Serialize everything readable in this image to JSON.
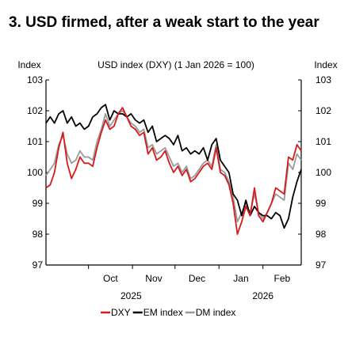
{
  "chart_data": {
    "type": "line",
    "title": "3. USD firmed, after a weak start to the year",
    "subtitle": "USD index (DXY) (1 Jan 2026 = 100)",
    "ylabel_left": "Index",
    "ylabel_right": "Index",
    "ylim": [
      97,
      103
    ],
    "yticks": [
      "103",
      "102",
      "101",
      "100",
      "99",
      "98",
      "97"
    ],
    "x_range": [
      "2025-09-01",
      "2026-02-28"
    ],
    "month_ticks": [
      {
        "label": "Oct",
        "date": "2025-10-01"
      },
      {
        "label": "Nov",
        "date": "2025-11-01"
      },
      {
        "label": "Dec",
        "date": "2025-12-01"
      },
      {
        "label": "Jan",
        "date": "2026-01-01"
      },
      {
        "label": "Feb",
        "date": "2026-02-01"
      }
    ],
    "year_labels": [
      {
        "label": "2025",
        "date": "2025-10-31"
      },
      {
        "label": "2026",
        "date": "2026-02-01"
      }
    ],
    "grid": false,
    "legend_position": "bottom",
    "series": [
      {
        "name": "DXY",
        "color": "#d7191c",
        "points": [
          [
            "2025-09-01",
            99.5
          ],
          [
            "2025-09-04",
            99.6
          ],
          [
            "2025-09-07",
            100.0
          ],
          [
            "2025-09-10",
            100.8
          ],
          [
            "2025-09-13",
            101.3
          ],
          [
            "2025-09-16",
            100.3
          ],
          [
            "2025-09-19",
            99.8
          ],
          [
            "2025-09-22",
            100.1
          ],
          [
            "2025-09-25",
            100.5
          ],
          [
            "2025-09-28",
            100.3
          ],
          [
            "2025-10-01",
            100.3
          ],
          [
            "2025-10-04",
            100.2
          ],
          [
            "2025-10-07",
            100.8
          ],
          [
            "2025-10-10",
            101.3
          ],
          [
            "2025-10-13",
            101.7
          ],
          [
            "2025-10-16",
            101.4
          ],
          [
            "2025-10-19",
            101.5
          ],
          [
            "2025-10-22",
            101.9
          ],
          [
            "2025-10-25",
            102.1
          ],
          [
            "2025-10-28",
            101.8
          ],
          [
            "2025-10-31",
            101.5
          ],
          [
            "2025-11-03",
            101.4
          ],
          [
            "2025-11-06",
            101.2
          ],
          [
            "2025-11-09",
            101.3
          ],
          [
            "2025-11-12",
            100.6
          ],
          [
            "2025-11-15",
            100.8
          ],
          [
            "2025-11-18",
            100.4
          ],
          [
            "2025-11-21",
            100.5
          ],
          [
            "2025-11-24",
            100.7
          ],
          [
            "2025-11-27",
            100.3
          ],
          [
            "2025-11-30",
            100.0
          ],
          [
            "2025-12-03",
            100.2
          ],
          [
            "2025-12-06",
            99.9
          ],
          [
            "2025-12-09",
            100.1
          ],
          [
            "2025-12-12",
            99.7
          ],
          [
            "2025-12-15",
            99.8
          ],
          [
            "2025-12-18",
            100.0
          ],
          [
            "2025-12-21",
            100.2
          ],
          [
            "2025-12-24",
            100.3
          ],
          [
            "2025-12-27",
            100.1
          ],
          [
            "2025-12-30",
            100.8
          ],
          [
            "2026-01-02",
            100.0
          ],
          [
            "2026-01-05",
            99.9
          ],
          [
            "2026-01-08",
            99.6
          ],
          [
            "2026-01-11",
            99.0
          ],
          [
            "2026-01-14",
            98.0
          ],
          [
            "2026-01-17",
            98.4
          ],
          [
            "2026-01-20",
            98.9
          ],
          [
            "2026-01-23",
            98.6
          ],
          [
            "2026-01-26",
            99.5
          ],
          [
            "2026-01-29",
            98.6
          ],
          [
            "2026-02-01",
            98.4
          ],
          [
            "2026-02-04",
            98.7
          ],
          [
            "2026-02-07",
            99.0
          ],
          [
            "2026-02-10",
            99.5
          ],
          [
            "2026-02-13",
            99.4
          ],
          [
            "2026-02-16",
            99.3
          ],
          [
            "2026-02-19",
            100.5
          ],
          [
            "2026-02-22",
            100.4
          ],
          [
            "2026-02-25",
            100.9
          ],
          [
            "2026-02-28",
            100.7
          ]
        ]
      },
      {
        "name": "EM index",
        "color": "#000000",
        "points": [
          [
            "2025-09-01",
            101.6
          ],
          [
            "2025-09-04",
            101.8
          ],
          [
            "2025-09-07",
            101.6
          ],
          [
            "2025-09-10",
            101.9
          ],
          [
            "2025-09-13",
            102.0
          ],
          [
            "2025-09-16",
            101.6
          ],
          [
            "2025-09-19",
            101.8
          ],
          [
            "2025-09-22",
            101.5
          ],
          [
            "2025-09-25",
            101.6
          ],
          [
            "2025-09-28",
            101.4
          ],
          [
            "2025-10-01",
            101.5
          ],
          [
            "2025-10-04",
            101.8
          ],
          [
            "2025-10-07",
            101.9
          ],
          [
            "2025-10-10",
            102.1
          ],
          [
            "2025-10-13",
            102.2
          ],
          [
            "2025-10-16",
            101.7
          ],
          [
            "2025-10-19",
            102.0
          ],
          [
            "2025-10-22",
            101.9
          ],
          [
            "2025-10-25",
            101.9
          ],
          [
            "2025-10-28",
            101.8
          ],
          [
            "2025-10-31",
            101.9
          ],
          [
            "2025-11-03",
            101.7
          ],
          [
            "2025-11-06",
            101.6
          ],
          [
            "2025-11-09",
            101.7
          ],
          [
            "2025-11-12",
            101.3
          ],
          [
            "2025-11-15",
            101.5
          ],
          [
            "2025-11-18",
            101.0
          ],
          [
            "2025-11-21",
            101.1
          ],
          [
            "2025-11-24",
            101.2
          ],
          [
            "2025-11-27",
            101.1
          ],
          [
            "2025-11-30",
            100.9
          ],
          [
            "2025-12-03",
            101.2
          ],
          [
            "2025-12-06",
            100.7
          ],
          [
            "2025-12-09",
            100.8
          ],
          [
            "2025-12-12",
            100.6
          ],
          [
            "2025-12-15",
            100.7
          ],
          [
            "2025-12-18",
            100.6
          ],
          [
            "2025-12-21",
            100.8
          ],
          [
            "2025-12-24",
            100.4
          ],
          [
            "2025-12-27",
            100.9
          ],
          [
            "2025-12-30",
            101.1
          ],
          [
            "2026-01-02",
            100.4
          ],
          [
            "2026-01-05",
            100.2
          ],
          [
            "2026-01-08",
            100.0
          ],
          [
            "2026-01-11",
            99.3
          ],
          [
            "2026-01-14",
            99.1
          ],
          [
            "2026-01-17",
            98.6
          ],
          [
            "2026-01-20",
            99.1
          ],
          [
            "2026-01-23",
            98.6
          ],
          [
            "2026-01-26",
            98.9
          ],
          [
            "2026-01-29",
            98.7
          ],
          [
            "2026-02-01",
            98.6
          ],
          [
            "2026-02-04",
            98.6
          ],
          [
            "2026-02-07",
            98.5
          ],
          [
            "2026-02-10",
            98.7
          ],
          [
            "2026-02-13",
            98.6
          ],
          [
            "2026-02-16",
            98.2
          ],
          [
            "2026-02-19",
            98.5
          ],
          [
            "2026-02-22",
            99.2
          ],
          [
            "2026-02-25",
            99.7
          ],
          [
            "2026-02-28",
            100.1
          ]
        ]
      },
      {
        "name": "DM index",
        "color": "#9a9a9a",
        "points": [
          [
            "2025-09-01",
            99.9
          ],
          [
            "2025-09-04",
            100.1
          ],
          [
            "2025-09-07",
            100.3
          ],
          [
            "2025-09-10",
            100.9
          ],
          [
            "2025-09-13",
            101.2
          ],
          [
            "2025-09-16",
            100.6
          ],
          [
            "2025-09-19",
            100.3
          ],
          [
            "2025-09-22",
            100.4
          ],
          [
            "2025-09-25",
            100.7
          ],
          [
            "2025-09-28",
            100.5
          ],
          [
            "2025-10-01",
            100.5
          ],
          [
            "2025-10-04",
            100.4
          ],
          [
            "2025-10-07",
            101.0
          ],
          [
            "2025-10-10",
            101.4
          ],
          [
            "2025-10-13",
            101.9
          ],
          [
            "2025-10-16",
            101.5
          ],
          [
            "2025-10-19",
            101.7
          ],
          [
            "2025-10-22",
            101.9
          ],
          [
            "2025-10-25",
            102.0
          ],
          [
            "2025-10-28",
            101.8
          ],
          [
            "2025-10-31",
            101.6
          ],
          [
            "2025-11-03",
            101.5
          ],
          [
            "2025-11-06",
            101.3
          ],
          [
            "2025-11-09",
            101.4
          ],
          [
            "2025-11-12",
            100.8
          ],
          [
            "2025-11-15",
            100.9
          ],
          [
            "2025-11-18",
            100.6
          ],
          [
            "2025-11-21",
            100.7
          ],
          [
            "2025-11-24",
            100.8
          ],
          [
            "2025-11-27",
            100.5
          ],
          [
            "2025-11-30",
            100.2
          ],
          [
            "2025-12-03",
            100.3
          ],
          [
            "2025-12-06",
            100.0
          ],
          [
            "2025-12-09",
            100.2
          ],
          [
            "2025-12-12",
            99.8
          ],
          [
            "2025-12-15",
            99.9
          ],
          [
            "2025-12-18",
            100.1
          ],
          [
            "2025-12-21",
            100.3
          ],
          [
            "2025-12-24",
            100.4
          ],
          [
            "2025-12-27",
            100.2
          ],
          [
            "2025-12-30",
            100.9
          ],
          [
            "2026-01-02",
            100.1
          ],
          [
            "2026-01-05",
            100.0
          ],
          [
            "2026-01-08",
            99.7
          ],
          [
            "2026-01-11",
            99.2
          ],
          [
            "2026-01-14",
            98.4
          ],
          [
            "2026-01-17",
            98.7
          ],
          [
            "2026-01-20",
            99.0
          ],
          [
            "2026-01-23",
            98.7
          ],
          [
            "2026-01-26",
            99.3
          ],
          [
            "2026-01-29",
            98.7
          ],
          [
            "2026-02-01",
            98.5
          ],
          [
            "2026-02-04",
            98.7
          ],
          [
            "2026-02-07",
            99.0
          ],
          [
            "2026-02-10",
            99.3
          ],
          [
            "2026-02-13",
            99.2
          ],
          [
            "2026-02-16",
            99.1
          ],
          [
            "2026-02-19",
            100.3
          ],
          [
            "2026-02-22",
            100.1
          ],
          [
            "2026-02-25",
            100.6
          ],
          [
            "2026-02-28",
            100.4
          ]
        ]
      }
    ]
  }
}
